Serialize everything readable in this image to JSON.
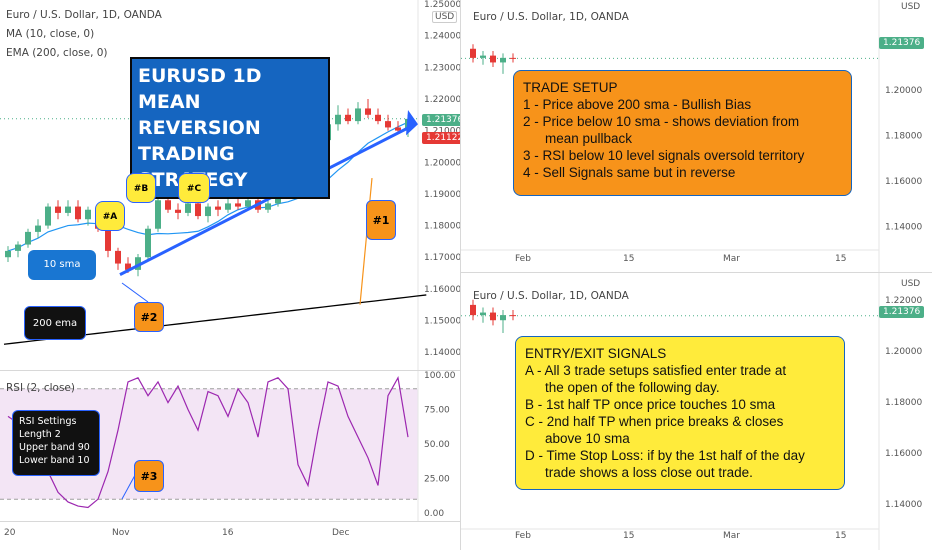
{
  "colors": {
    "up": "#4caf88",
    "down": "#e53935",
    "ma": "#2196f3",
    "ema": "#000000",
    "rsi": "#9c27b0",
    "accent": "#2962ff",
    "orange": "#f7931a",
    "yellow": "#ffeb3b"
  },
  "left_chart": {
    "symbol": "Euro / U.S. Dollar, 1D, OANDA",
    "ma_label": "MA (10, close, 0)",
    "ema_label": "EMA (200, close, 0)",
    "currency": "USD",
    "price_ticks": [
      "1.25000",
      "1.24000",
      "1.23000",
      "1.22000",
      "1.21000",
      "1.20000",
      "1.19000",
      "1.18000",
      "1.17000",
      "1.16000",
      "1.15000",
      "1.14000"
    ],
    "last_price": "1.21376",
    "ma_price": "1.21122",
    "title_lines": [
      "EURUSD 1D",
      "MEAN REVERSION",
      "TRADING STRATEGY"
    ],
    "sma_label": "10 sma",
    "ema_tag": "200 ema",
    "tag_a": "#A",
    "tag_b": "#B",
    "tag_c": "#C",
    "tag_1": "#1",
    "tag_2": "#2",
    "tag_3": "#3"
  },
  "rsi": {
    "label": "RSI (2, close)",
    "ticks": [
      "100.00",
      "75.00",
      "50.00",
      "25.00",
      "0.00"
    ],
    "settings": [
      "RSI Settings",
      "Length 2",
      "Upper band 90",
      "Lower band 10"
    ],
    "values": [
      70,
      65,
      55,
      40,
      30,
      15,
      8,
      5,
      4,
      10,
      30,
      60,
      95,
      98,
      85,
      95,
      80,
      92,
      75,
      60,
      88,
      85,
      70,
      90,
      80,
      55,
      95,
      98,
      90,
      35,
      20,
      60,
      95,
      92,
      70,
      55,
      40,
      20,
      85,
      98,
      55
    ]
  },
  "x_ticks": [
    "20",
    "Nov",
    "16",
    "Dec"
  ],
  "right_top": {
    "symbol": "Euro / U.S. Dollar, 1D, OANDA",
    "currency": "USD",
    "price_ticks": [
      "1.22000",
      "1.20000",
      "1.18000",
      "1.16000",
      "1.14000"
    ],
    "last_price": "1.21376",
    "x_ticks": [
      "Feb",
      "15",
      "Mar",
      "15"
    ],
    "heading": "TRADE SETUP",
    "lines": [
      "1 - Price above 200 sma - Bullish Bias",
      "2 - Price below 10 sma - shows deviation from",
      "mean pullback",
      "3 - RSI below 10 level signals oversold territory",
      "4 - Sell Signals same but in reverse"
    ]
  },
  "right_bottom": {
    "symbol": "Euro / U.S. Dollar, 1D, OANDA",
    "currency": "USD",
    "price_ticks": [
      "1.22000",
      "1.20000",
      "1.18000",
      "1.16000",
      "1.14000"
    ],
    "last_price": "1.21376",
    "x_ticks": [
      "Feb",
      "15",
      "Mar",
      "15"
    ],
    "heading": "ENTRY/EXIT SIGNALS",
    "lines": [
      "A - All 3 trade setups satisfied enter trade at",
      "the open of the following day.",
      "B - 1st half TP once price touches 10 sma",
      "C - 2nd half TP when price breaks & closes",
      "above 10 sma",
      "D - Time Stop Loss: if by the 1st half of the day",
      "trade shows a loss close out trade."
    ]
  },
  "candles": [
    [
      1.17,
      1.1735,
      1.1685,
      1.172
    ],
    [
      1.172,
      1.175,
      1.17,
      1.174
    ],
    [
      1.174,
      1.179,
      1.173,
      1.178
    ],
    [
      1.178,
      1.182,
      1.176,
      1.18
    ],
    [
      1.18,
      1.187,
      1.179,
      1.186
    ],
    [
      1.186,
      1.188,
      1.182,
      1.184
    ],
    [
      1.184,
      1.188,
      1.183,
      1.186
    ],
    [
      1.186,
      1.188,
      1.181,
      1.182
    ],
    [
      1.182,
      1.186,
      1.18,
      1.185
    ],
    [
      1.185,
      1.186,
      1.178,
      1.179
    ],
    [
      1.179,
      1.18,
      1.17,
      1.172
    ],
    [
      1.172,
      1.173,
      1.166,
      1.168
    ],
    [
      1.168,
      1.17,
      1.165,
      1.166
    ],
    [
      1.166,
      1.171,
      1.164,
      1.17
    ],
    [
      1.17,
      1.18,
      1.169,
      1.179
    ],
    [
      1.179,
      1.19,
      1.178,
      1.188
    ],
    [
      1.188,
      1.19,
      1.184,
      1.185
    ],
    [
      1.185,
      1.187,
      1.182,
      1.184
    ],
    [
      1.184,
      1.189,
      1.183,
      1.187
    ],
    [
      1.187,
      1.188,
      1.182,
      1.183
    ],
    [
      1.183,
      1.187,
      1.181,
      1.186
    ],
    [
      1.186,
      1.188,
      1.183,
      1.185
    ],
    [
      1.185,
      1.189,
      1.184,
      1.187
    ],
    [
      1.187,
      1.189,
      1.185,
      1.186
    ],
    [
      1.186,
      1.19,
      1.185,
      1.188
    ],
    [
      1.188,
      1.189,
      1.184,
      1.185
    ],
    [
      1.185,
      1.188,
      1.184,
      1.187
    ],
    [
      1.187,
      1.196,
      1.186,
      1.195
    ],
    [
      1.195,
      1.197,
      1.192,
      1.193
    ],
    [
      1.193,
      1.195,
      1.191,
      1.194
    ],
    [
      1.194,
      1.2,
      1.193,
      1.199
    ],
    [
      1.199,
      1.208,
      1.198,
      1.207
    ],
    [
      1.207,
      1.213,
      1.206,
      1.212
    ],
    [
      1.212,
      1.218,
      1.21,
      1.215
    ],
    [
      1.215,
      1.217,
      1.212,
      1.213
    ],
    [
      1.213,
      1.219,
      1.212,
      1.217
    ],
    [
      1.217,
      1.22,
      1.214,
      1.215
    ],
    [
      1.215,
      1.217,
      1.212,
      1.213
    ],
    [
      1.213,
      1.215,
      1.21,
      1.211
    ],
    [
      1.211,
      1.213,
      1.209,
      1.21
    ],
    [
      1.21,
      1.215,
      1.208,
      1.2137
    ]
  ],
  "mini_candles": [
    [
      1.218,
      1.22,
      1.212,
      1.214
    ],
    [
      1.214,
      1.217,
      1.211,
      1.215
    ],
    [
      1.215,
      1.217,
      1.21,
      1.212
    ],
    [
      1.212,
      1.216,
      1.207,
      1.214
    ],
    [
      1.214,
      1.216,
      1.212,
      1.2137
    ]
  ]
}
